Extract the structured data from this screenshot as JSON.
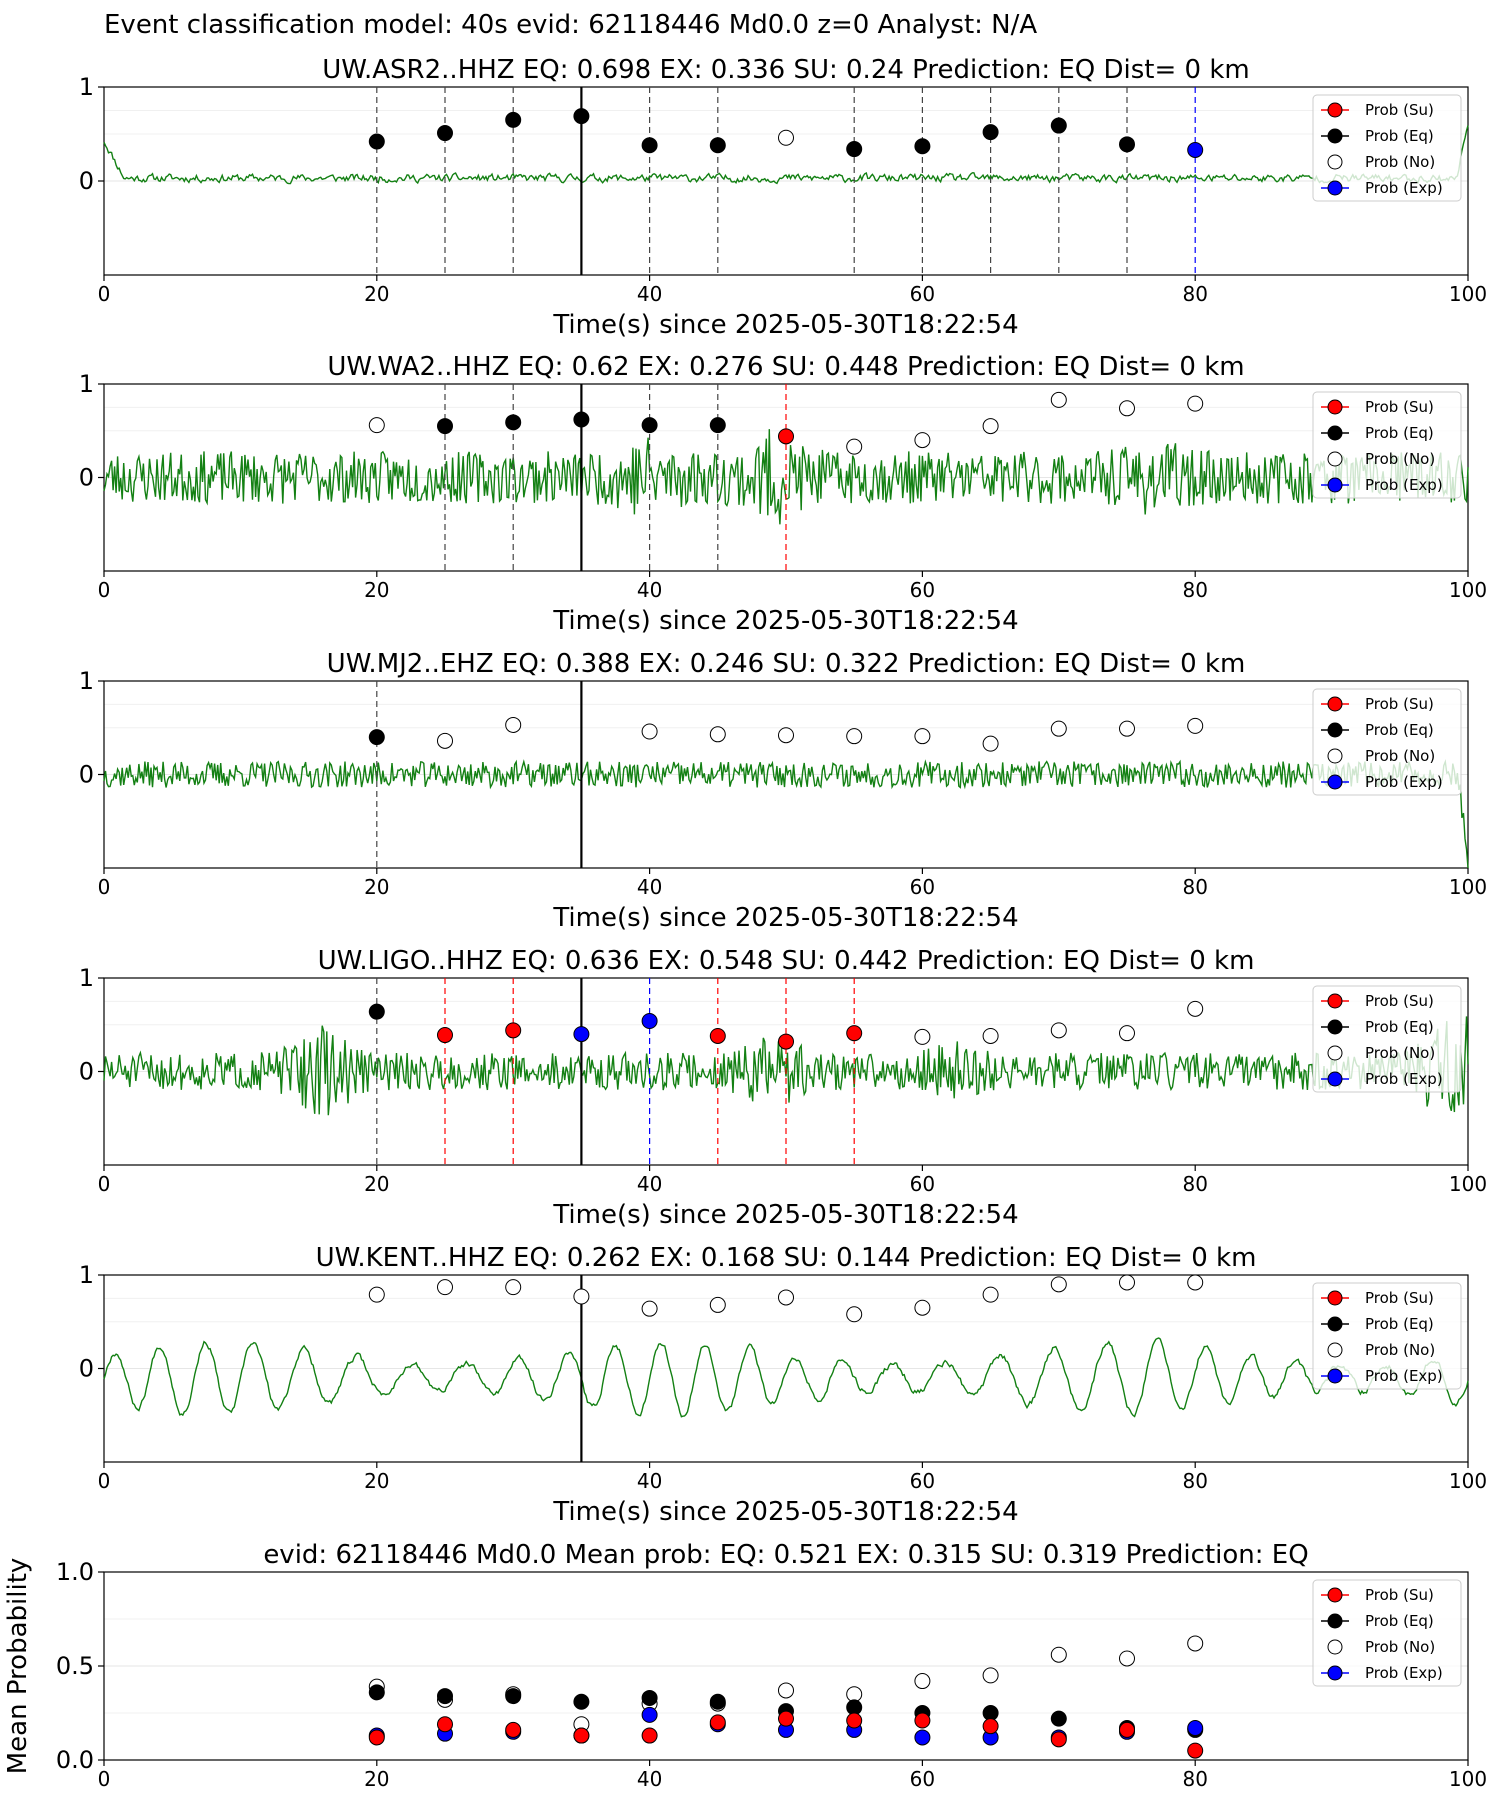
{
  "figure": {
    "suptitle": "Event classification model: 40s evid: 62118446 Md0.0 z=0 Analyst: N/A",
    "legend_labels": [
      "Prob (Su)",
      "Prob (Eq)",
      "Prob (No)",
      "Prob (Exp)"
    ],
    "colors": {
      "trace": "#138013",
      "su": "#ff0000",
      "eq": "#000000",
      "no": "#ffffff",
      "exp": "#0000ff",
      "grid": "#e6e6e6",
      "trace_faded": "#b4d9b4"
    }
  },
  "chart_data": [
    {
      "type": "scatter",
      "title": "UW.ASR2..HHZ   EQ: 0.698  EX: 0.336  SU: 0.24   Prediction: EQ    Dist= 0 km",
      "xlabel": "Time(s) since 2025-05-30T18:22:54",
      "xlim": [
        0,
        100
      ],
      "ylim": [
        -1,
        1
      ],
      "xticks": [
        0,
        20,
        40,
        60,
        80,
        100
      ],
      "yticks": [
        1,
        0
      ],
      "legend": "top-right",
      "arrival_line_x": 35,
      "trace": {
        "kind": "noise",
        "baseline": 0.03,
        "amp": 0.07,
        "start_spike": 0.4,
        "end_spike": 0.6,
        "seed": 11
      },
      "points": [
        {
          "x": 20,
          "y": 0.42,
          "cls": "eq"
        },
        {
          "x": 25,
          "y": 0.51,
          "cls": "eq"
        },
        {
          "x": 30,
          "y": 0.65,
          "cls": "eq"
        },
        {
          "x": 35,
          "y": 0.69,
          "cls": "eq"
        },
        {
          "x": 40,
          "y": 0.38,
          "cls": "eq"
        },
        {
          "x": 45,
          "y": 0.38,
          "cls": "eq"
        },
        {
          "x": 50,
          "y": 0.46,
          "cls": "no"
        },
        {
          "x": 55,
          "y": 0.34,
          "cls": "eq"
        },
        {
          "x": 60,
          "y": 0.37,
          "cls": "eq"
        },
        {
          "x": 65,
          "y": 0.52,
          "cls": "eq"
        },
        {
          "x": 70,
          "y": 0.59,
          "cls": "eq"
        },
        {
          "x": 75,
          "y": 0.39,
          "cls": "eq"
        },
        {
          "x": 80,
          "y": 0.33,
          "cls": "exp"
        }
      ]
    },
    {
      "type": "scatter",
      "title": "UW.WA2..HHZ   EQ: 0.62  EX: 0.276  SU: 0.448   Prediction: EQ    Dist= 0 km",
      "xlabel": "Time(s) since 2025-05-30T18:22:54",
      "xlim": [
        0,
        100
      ],
      "ylim": [
        -1,
        1
      ],
      "xticks": [
        0,
        20,
        40,
        60,
        80,
        100
      ],
      "yticks": [
        1,
        0
      ],
      "legend": "top-right",
      "arrival_line_x": 35,
      "trace": {
        "kind": "noise",
        "baseline": 0.0,
        "amp": 0.28,
        "bursts": [
          [
            40,
            0.2
          ],
          [
            49,
            0.25
          ],
          [
            77,
            0.15
          ]
        ],
        "seed": 23
      },
      "points": [
        {
          "x": 20,
          "y": 0.56,
          "cls": "no"
        },
        {
          "x": 25,
          "y": 0.55,
          "cls": "eq"
        },
        {
          "x": 30,
          "y": 0.59,
          "cls": "eq"
        },
        {
          "x": 35,
          "y": 0.62,
          "cls": "eq"
        },
        {
          "x": 40,
          "y": 0.56,
          "cls": "eq"
        },
        {
          "x": 45,
          "y": 0.56,
          "cls": "eq"
        },
        {
          "x": 50,
          "y": 0.44,
          "cls": "su"
        },
        {
          "x": 55,
          "y": 0.33,
          "cls": "no"
        },
        {
          "x": 60,
          "y": 0.4,
          "cls": "no"
        },
        {
          "x": 65,
          "y": 0.55,
          "cls": "no"
        },
        {
          "x": 70,
          "y": 0.83,
          "cls": "no"
        },
        {
          "x": 75,
          "y": 0.74,
          "cls": "no"
        },
        {
          "x": 80,
          "y": 0.79,
          "cls": "no"
        }
      ]
    },
    {
      "type": "scatter",
      "title": "UW.MJ2..EHZ   EQ: 0.388  EX: 0.246  SU: 0.322   Prediction: EQ    Dist= 0 km",
      "xlabel": "Time(s) since 2025-05-30T18:22:54",
      "xlim": [
        0,
        100
      ],
      "ylim": [
        -1,
        1
      ],
      "xticks": [
        0,
        20,
        40,
        60,
        80,
        100
      ],
      "yticks": [
        1,
        0
      ],
      "legend": "top-right",
      "arrival_line_x": 35,
      "trace": {
        "kind": "noise",
        "baseline": 0.0,
        "amp": 0.14,
        "end_drop": -0.95,
        "seed": 37
      },
      "points": [
        {
          "x": 20,
          "y": 0.4,
          "cls": "eq"
        },
        {
          "x": 25,
          "y": 0.36,
          "cls": "no"
        },
        {
          "x": 30,
          "y": 0.53,
          "cls": "no"
        },
        {
          "x": 40,
          "y": 0.46,
          "cls": "no"
        },
        {
          "x": 45,
          "y": 0.43,
          "cls": "no"
        },
        {
          "x": 50,
          "y": 0.42,
          "cls": "no"
        },
        {
          "x": 55,
          "y": 0.41,
          "cls": "no"
        },
        {
          "x": 60,
          "y": 0.41,
          "cls": "no"
        },
        {
          "x": 65,
          "y": 0.33,
          "cls": "no"
        },
        {
          "x": 70,
          "y": 0.49,
          "cls": "no"
        },
        {
          "x": 75,
          "y": 0.49,
          "cls": "no"
        },
        {
          "x": 80,
          "y": 0.52,
          "cls": "no"
        }
      ]
    },
    {
      "type": "scatter",
      "title": "UW.LIGO..HHZ   EQ: 0.636  EX: 0.548  SU: 0.442   Prediction: EQ    Dist= 0 km",
      "xlabel": "Time(s) since 2025-05-30T18:22:54",
      "xlim": [
        0,
        100
      ],
      "ylim": [
        -1,
        1
      ],
      "xticks": [
        0,
        20,
        40,
        60,
        80,
        100
      ],
      "yticks": [
        1,
        0
      ],
      "legend": "top-right",
      "arrival_line_x": 35,
      "trace": {
        "kind": "noise",
        "baseline": 0.0,
        "amp": 0.2,
        "bursts": [
          [
            16,
            0.3
          ],
          [
            49,
            0.2
          ],
          [
            62,
            0.15
          ],
          [
            99,
            0.5
          ]
        ],
        "seed": 51
      },
      "points": [
        {
          "x": 20,
          "y": 0.64,
          "cls": "eq"
        },
        {
          "x": 25,
          "y": 0.39,
          "cls": "su"
        },
        {
          "x": 30,
          "y": 0.44,
          "cls": "su"
        },
        {
          "x": 35,
          "y": 0.4,
          "cls": "exp"
        },
        {
          "x": 40,
          "y": 0.54,
          "cls": "exp"
        },
        {
          "x": 45,
          "y": 0.38,
          "cls": "su"
        },
        {
          "x": 50,
          "y": 0.32,
          "cls": "su"
        },
        {
          "x": 55,
          "y": 0.41,
          "cls": "su"
        },
        {
          "x": 60,
          "y": 0.37,
          "cls": "no"
        },
        {
          "x": 65,
          "y": 0.38,
          "cls": "no"
        },
        {
          "x": 70,
          "y": 0.44,
          "cls": "no"
        },
        {
          "x": 75,
          "y": 0.41,
          "cls": "no"
        },
        {
          "x": 80,
          "y": 0.67,
          "cls": "no"
        }
      ]
    },
    {
      "type": "scatter",
      "title": "UW.KENT..HHZ   EQ: 0.262  EX: 0.168  SU: 0.144   Prediction: EQ    Dist= 0 km",
      "xlabel": "Time(s) since 2025-05-30T18:22:54",
      "xlim": [
        0,
        100
      ],
      "ylim": [
        -1,
        1
      ],
      "xticks": [
        0,
        20,
        40,
        60,
        80,
        100
      ],
      "yticks": [
        1,
        0
      ],
      "legend": "top-right",
      "arrival_line_x": 35,
      "trace": {
        "kind": "wave",
        "baseline": -0.1,
        "amp": 0.35,
        "period": 3.6,
        "seed": 67
      },
      "points": [
        {
          "x": 20,
          "y": 0.79,
          "cls": "no"
        },
        {
          "x": 25,
          "y": 0.87,
          "cls": "no"
        },
        {
          "x": 30,
          "y": 0.87,
          "cls": "no"
        },
        {
          "x": 35,
          "y": 0.77,
          "cls": "no"
        },
        {
          "x": 40,
          "y": 0.64,
          "cls": "no"
        },
        {
          "x": 45,
          "y": 0.68,
          "cls": "no"
        },
        {
          "x": 50,
          "y": 0.76,
          "cls": "no"
        },
        {
          "x": 55,
          "y": 0.58,
          "cls": "no"
        },
        {
          "x": 60,
          "y": 0.65,
          "cls": "no"
        },
        {
          "x": 65,
          "y": 0.79,
          "cls": "no"
        },
        {
          "x": 70,
          "y": 0.9,
          "cls": "no"
        },
        {
          "x": 75,
          "y": 0.92,
          "cls": "no"
        },
        {
          "x": 80,
          "y": 0.92,
          "cls": "no"
        }
      ]
    },
    {
      "type": "scatter",
      "title": "evid: 62118446  Md0.0   Mean prob:   EQ: 0.521  EX: 0.315  SU: 0.319   Prediction: EQ",
      "xlabel": "",
      "ylabel": "Mean Probability",
      "xlim": [
        0,
        100
      ],
      "ylim": [
        0,
        1
      ],
      "xticks": [
        0,
        20,
        40,
        60,
        80,
        100
      ],
      "yticks": [
        1.0,
        0.5,
        0.0
      ],
      "yticklabels": [
        "1.0",
        "0.5",
        "0.0"
      ],
      "legend": "top-right",
      "series": [
        {
          "name": "Prob (No)",
          "cls": "no",
          "x": [
            20,
            25,
            30,
            35,
            40,
            45,
            50,
            55,
            60,
            65,
            70,
            75,
            80
          ],
          "y": [
            0.39,
            0.32,
            0.35,
            0.19,
            0.3,
            0.3,
            0.37,
            0.35,
            0.42,
            0.45,
            0.56,
            0.54,
            0.62
          ]
        },
        {
          "name": "Prob (Eq)",
          "cls": "eq",
          "x": [
            20,
            25,
            30,
            35,
            40,
            45,
            50,
            55,
            60,
            65,
            70,
            75,
            80
          ],
          "y": [
            0.36,
            0.34,
            0.34,
            0.31,
            0.33,
            0.31,
            0.26,
            0.28,
            0.25,
            0.25,
            0.22,
            0.17,
            0.16
          ]
        },
        {
          "name": "Prob (Exp)",
          "cls": "exp",
          "x": [
            20,
            25,
            30,
            35,
            40,
            45,
            50,
            55,
            60,
            65,
            70,
            75,
            80
          ],
          "y": [
            0.13,
            0.14,
            0.15,
            0.13,
            0.24,
            0.19,
            0.16,
            0.16,
            0.12,
            0.12,
            0.12,
            0.15,
            0.17
          ]
        },
        {
          "name": "Prob (Su)",
          "cls": "su",
          "x": [
            20,
            25,
            30,
            35,
            40,
            45,
            50,
            55,
            60,
            65,
            70,
            75,
            80
          ],
          "y": [
            0.12,
            0.19,
            0.16,
            0.13,
            0.13,
            0.2,
            0.22,
            0.21,
            0.21,
            0.18,
            0.11,
            0.16,
            0.05
          ]
        }
      ]
    }
  ]
}
